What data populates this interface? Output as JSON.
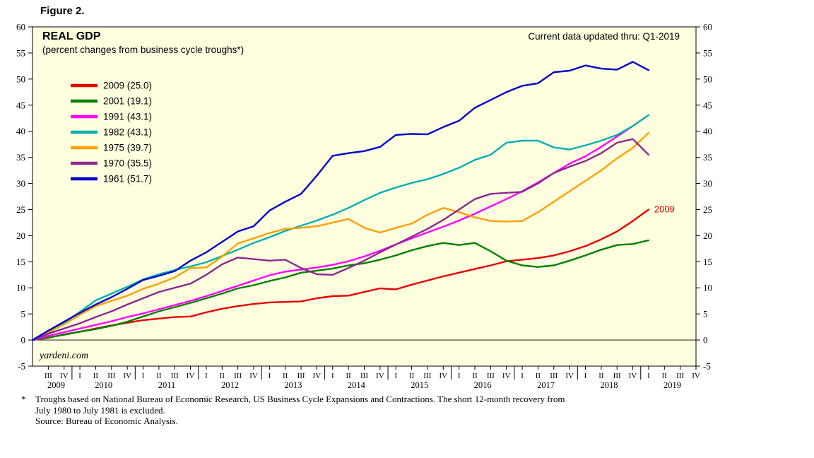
{
  "figure_label": "Figure 2.",
  "chart": {
    "title": "REAL GDP",
    "subtitle": "(percent changes from business cycle troughs*)",
    "updated_note": "Current data updated thru: Q1-2019",
    "watermark": "yardeni.com",
    "plot_bg": "#FFFFE0",
    "axis_color": "#000000",
    "end_annotation": {
      "text": "2009",
      "color": "#E80000"
    }
  },
  "chart_data": {
    "type": "line",
    "title": "REAL GDP (percent changes from business cycle troughs*)",
    "ylim": [
      -5,
      60
    ],
    "ytick_step": 5,
    "y_axis_both_sides": true,
    "grid": false,
    "legend_position": "top-left",
    "x_axis": {
      "unit": "quarters since business cycle trough (calendar labels shown for 2009 cycle)",
      "quarter_labels": [
        "III",
        "IV",
        "I",
        "II",
        "III",
        "IV",
        "I",
        "II",
        "III",
        "IV",
        "I",
        "II",
        "III",
        "IV",
        "I",
        "II",
        "III",
        "IV",
        "I",
        "II",
        "III",
        "IV",
        "I",
        "II",
        "III",
        "IV",
        "I",
        "II",
        "III",
        "IV",
        "I",
        "II",
        "III",
        "IV",
        "I",
        "II",
        "III",
        "IV",
        "I",
        "II",
        "III",
        "IV"
      ],
      "year_groups": [
        {
          "label": "2009",
          "ticks": [
            0,
            1
          ]
        },
        {
          "label": "2010",
          "ticks": [
            2,
            3,
            4,
            5
          ]
        },
        {
          "label": "2011",
          "ticks": [
            6,
            7,
            8,
            9
          ]
        },
        {
          "label": "2012",
          "ticks": [
            10,
            11,
            12,
            13
          ]
        },
        {
          "label": "2013",
          "ticks": [
            14,
            15,
            16,
            17
          ]
        },
        {
          "label": "2014",
          "ticks": [
            18,
            19,
            20,
            21
          ]
        },
        {
          "label": "2015",
          "ticks": [
            22,
            23,
            24,
            25
          ]
        },
        {
          "label": "2016",
          "ticks": [
            26,
            27,
            28,
            29
          ]
        },
        {
          "label": "2017",
          "ticks": [
            30,
            31,
            32,
            33
          ]
        },
        {
          "label": "2018",
          "ticks": [
            34,
            35,
            36,
            37
          ]
        },
        {
          "label": "2019",
          "ticks": [
            38,
            39,
            40,
            41
          ]
        }
      ]
    },
    "series": [
      {
        "label": "2009 (25.0)",
        "color": "#E80000",
        "values": [
          0,
          0.4,
          1.1,
          1.6,
          2.2,
          2.8,
          3.3,
          3.8,
          4.1,
          4.4,
          4.5,
          5.3,
          6.0,
          6.5,
          6.9,
          7.2,
          7.3,
          7.4,
          8.0,
          8.4,
          8.5,
          9.2,
          9.9,
          9.7,
          10.6,
          11.4,
          12.2,
          12.9,
          13.6,
          14.3,
          15.1,
          15.4,
          15.7,
          16.2,
          17.0,
          18.0,
          19.3,
          20.8,
          22.8,
          25.0
        ]
      },
      {
        "label": "2001 (19.1)",
        "color": "#008000",
        "values": [
          0,
          0.5,
          1.0,
          1.6,
          2.1,
          2.7,
          3.5,
          4.5,
          5.5,
          6.3,
          7.1,
          8.0,
          8.9,
          9.9,
          10.5,
          11.3,
          12.0,
          12.9,
          13.3,
          13.7,
          14.3,
          14.7,
          15.4,
          16.2,
          17.2,
          18.0,
          18.6,
          18.2,
          18.6,
          17.0,
          15.2,
          14.3,
          14.0,
          14.3,
          15.2,
          16.2,
          17.3,
          18.2,
          18.4,
          19.1
        ]
      },
      {
        "label": "1991 (43.1)",
        "color": "#FF00FF",
        "values": [
          0,
          0.8,
          1.5,
          2.2,
          2.9,
          3.6,
          4.4,
          5.1,
          5.9,
          6.7,
          7.5,
          8.4,
          9.4,
          10.4,
          11.4,
          12.4,
          13.1,
          13.5,
          13.9,
          14.4,
          15.1,
          16.0,
          17.1,
          18.3,
          19.5,
          20.6,
          21.7,
          22.9,
          24.2,
          25.6,
          27.0,
          28.5,
          30.2,
          32.0,
          33.8,
          35.2,
          37.0,
          39.0,
          41.0,
          43.1
        ]
      },
      {
        "label": "1982 (43.1)",
        "color": "#00B0B0",
        "values": [
          0,
          1.3,
          3.3,
          5.4,
          7.6,
          8.9,
          10.2,
          11.6,
          12.6,
          13.4,
          14.1,
          14.9,
          16.1,
          17.3,
          18.6,
          19.7,
          20.9,
          21.9,
          22.9,
          24.0,
          25.3,
          26.8,
          28.2,
          29.2,
          30.1,
          30.8,
          31.8,
          33.0,
          34.5,
          35.5,
          37.8,
          38.2,
          38.2,
          36.9,
          36.5,
          37.3,
          38.2,
          39.3,
          41.0,
          43.1
        ]
      },
      {
        "label": "1975 (39.7)",
        "color": "#FFA000",
        "values": [
          0,
          1.5,
          3.0,
          4.8,
          6.5,
          7.5,
          8.5,
          9.8,
          10.8,
          12.0,
          13.8,
          13.9,
          16.0,
          18.5,
          19.5,
          20.5,
          21.3,
          21.5,
          21.8,
          22.5,
          23.2,
          21.5,
          20.6,
          21.5,
          22.3,
          24.0,
          25.3,
          24.5,
          23.5,
          22.8,
          22.7,
          22.8,
          24.5,
          26.5,
          28.5,
          30.5,
          32.5,
          34.8,
          36.8,
          39.7
        ]
      },
      {
        "label": "1970 (35.5)",
        "color": "#8A2A8F",
        "values": [
          0,
          1.2,
          2.2,
          3.2,
          4.4,
          5.5,
          6.8,
          8.0,
          9.2,
          10.0,
          10.8,
          12.5,
          14.5,
          15.8,
          15.5,
          15.2,
          15.4,
          13.8,
          12.6,
          12.5,
          13.8,
          15.2,
          16.8,
          18.3,
          19.8,
          21.3,
          23.0,
          25.0,
          27.0,
          28.0,
          28.2,
          28.4,
          30.0,
          32.0,
          33.2,
          34.3,
          35.8,
          37.8,
          38.5,
          35.5
        ]
      },
      {
        "label": "1961 (51.7)",
        "color": "#0000CD",
        "values": [
          0,
          1.8,
          3.5,
          5.2,
          6.8,
          8.2,
          9.8,
          11.5,
          12.3,
          13.2,
          15.2,
          16.8,
          18.8,
          20.8,
          21.8,
          24.8,
          26.5,
          28.0,
          31.5,
          35.3,
          35.8,
          36.2,
          37.0,
          39.3,
          39.5,
          39.4,
          40.8,
          42.0,
          44.5,
          46.0,
          47.5,
          48.7,
          49.2,
          51.3,
          51.6,
          52.6,
          52.0,
          51.8,
          53.3,
          51.7
        ]
      }
    ]
  },
  "footnote": {
    "marker": "*",
    "lines": [
      "Troughs based on National Bureau of Economic Research, US Business Cycle Expansions and Contractions. The short 12-month recovery from",
      "July 1980 to July 1981 is excluded.",
      "Source: Bureau of Economic Analysis."
    ]
  }
}
